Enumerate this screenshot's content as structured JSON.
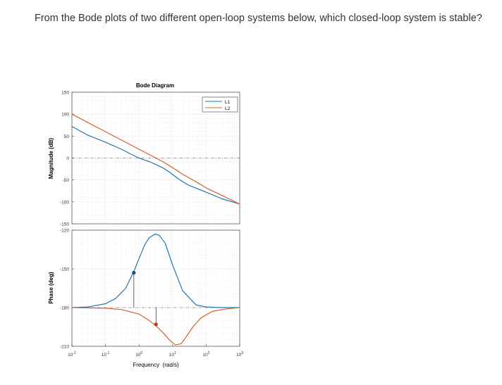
{
  "question": "From the Bode plots of two different open-loop systems below, which closed-loop system is stable?",
  "colors": {
    "L1": "#1f77b4",
    "L2": "#d4622a"
  },
  "chart_data": [
    {
      "type": "line",
      "panel": "magnitude",
      "title": "Bode Diagram",
      "xlabel": "",
      "ylabel": "Magnitude (dB)",
      "xscale": "log",
      "xlim": [
        0.01,
        1000
      ],
      "ylim": [
        -150,
        150
      ],
      "yticks": [
        -150,
        -100,
        -50,
        0,
        50,
        100,
        150
      ],
      "grid": true,
      "legend": {
        "position": "top-right",
        "entries": [
          "L1",
          "L2"
        ]
      },
      "series": [
        {
          "name": "L1",
          "x": [
            0.01,
            0.03,
            0.1,
            0.3,
            0.6,
            1,
            1.5,
            2,
            3,
            5,
            8,
            15,
            30,
            100,
            300,
            1000
          ],
          "y": [
            72,
            52,
            36,
            20,
            8,
            0,
            -5,
            -8,
            -14,
            -22,
            -32,
            -48,
            -62,
            -78,
            -93,
            -105
          ]
        },
        {
          "name": "L2",
          "x": [
            0.01,
            0.1,
            1,
            2,
            3,
            5,
            10,
            20,
            50,
            100,
            1000
          ],
          "y": [
            100,
            60,
            20,
            8,
            1,
            -8,
            -22,
            -37,
            -54,
            -68,
            -105
          ]
        }
      ]
    },
    {
      "type": "line",
      "panel": "phase",
      "title": "",
      "xlabel": "Frequency  (rad/s)",
      "ylabel": "Phase (deg)",
      "xscale": "log",
      "xlim": [
        0.01,
        1000
      ],
      "ylim": [
        -210,
        -120
      ],
      "yticks": [
        -210,
        -180,
        -150,
        -120
      ],
      "xticks": [
        "10^-2",
        "10^-1",
        "10^0",
        "10^1",
        "10^2",
        "10^3"
      ],
      "grid": true,
      "reference_line": -180,
      "series": [
        {
          "name": "L1",
          "x": [
            0.01,
            0.03,
            0.1,
            0.2,
            0.4,
            0.7,
            1,
            1.5,
            2,
            3,
            4,
            6,
            10,
            20,
            50,
            100,
            300,
            1000
          ],
          "y": [
            -180,
            -179.5,
            -177,
            -173,
            -165,
            -152,
            -142,
            -131,
            -126,
            -123,
            -124,
            -130,
            -147,
            -167,
            -178,
            -179.5,
            -180,
            -180
          ]
        },
        {
          "name": "L2",
          "x": [
            0.01,
            0.1,
            0.3,
            1,
            2,
            3,
            5,
            8,
            12,
            18,
            25,
            40,
            70,
            150,
            400,
            1000
          ],
          "y": [
            -180,
            -180.5,
            -181.5,
            -185,
            -190,
            -193.5,
            -199,
            -205,
            -209,
            -208,
            -203,
            -195,
            -188,
            -183,
            -181,
            -180
          ]
        }
      ],
      "markers": [
        {
          "series": "L1",
          "x": 0.7,
          "y": -153
        },
        {
          "series": "L2",
          "x": 3.2,
          "y": -193
        }
      ]
    }
  ]
}
